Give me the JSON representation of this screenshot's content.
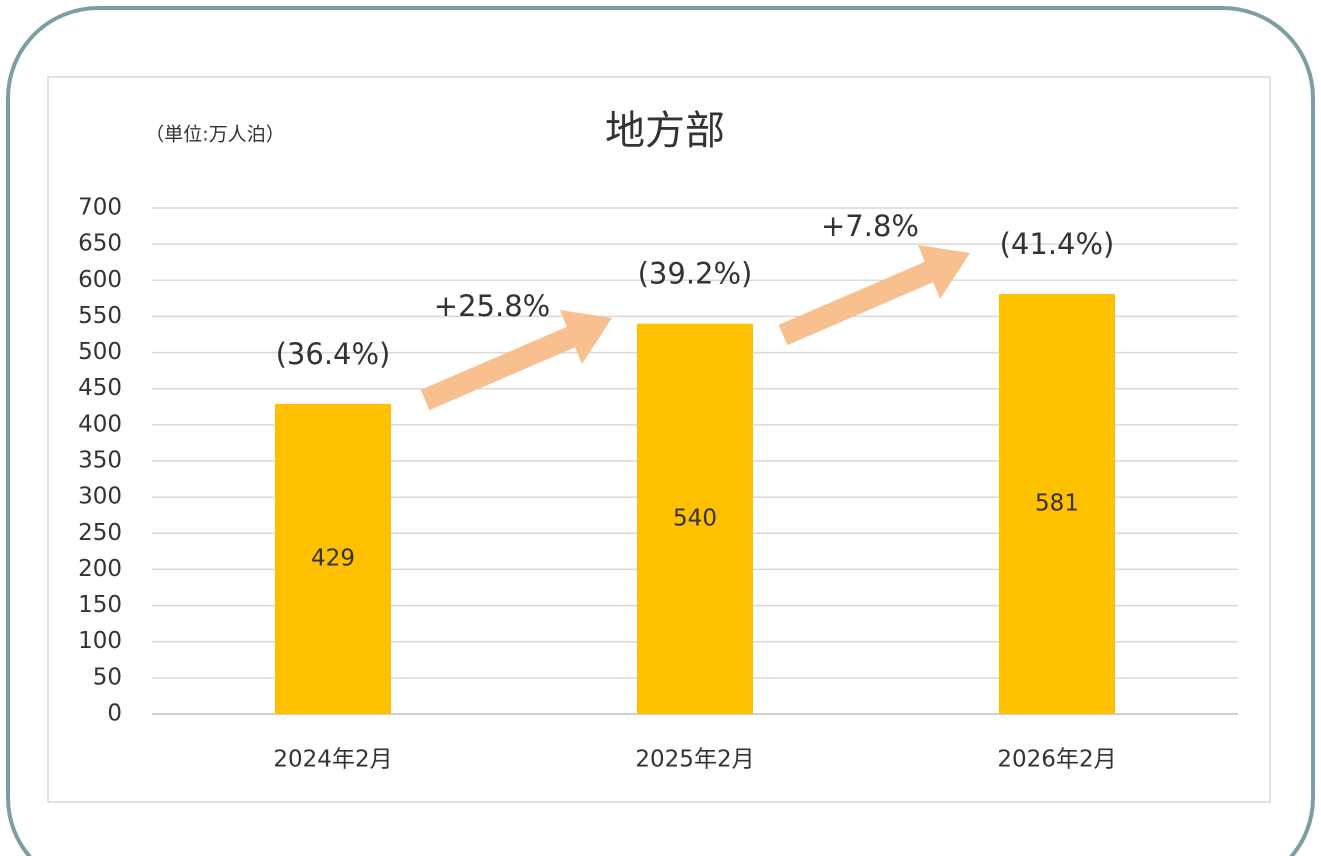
{
  "chart_data": {
    "type": "bar",
    "title": "地方部",
    "unit_label": "（単位:万人泊）",
    "categories": [
      "2024年2月",
      "2025年2月",
      "2026年2月"
    ],
    "values": [
      429,
      540,
      581
    ],
    "color": "#ffc000",
    "share_labels": [
      "(36.4%)",
      "(39.2%)",
      "(41.4%)"
    ],
    "growth_labels": [
      "+25.8%",
      "+7.8%"
    ],
    "ylim": [
      0,
      700
    ],
    "yticks": [
      0,
      50,
      100,
      150,
      200,
      250,
      300,
      350,
      400,
      450,
      500,
      550,
      600,
      650,
      700
    ],
    "grid": true
  }
}
